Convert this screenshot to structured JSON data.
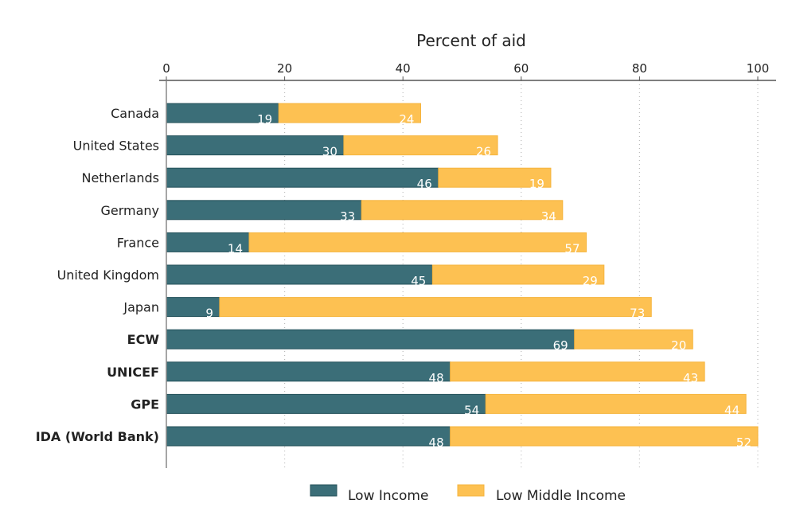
{
  "chart_data": {
    "type": "bar",
    "orientation": "horizontal",
    "stacked": true,
    "title": "",
    "xlabel": "Percent of aid",
    "ylabel": "",
    "xlim": [
      0,
      100
    ],
    "xticks": [
      0,
      20,
      40,
      60,
      80,
      100
    ],
    "grid": "vertical dotted",
    "legend_position": "bottom",
    "categories": [
      "Canada",
      "United States",
      "Netherlands",
      "Germany",
      "France",
      "United Kingdom",
      "Japan",
      "ECW",
      "UNICEF",
      "GPE",
      "IDA (World Bank)"
    ],
    "bold_categories": [
      "ECW",
      "UNICEF",
      "GPE",
      "IDA (World Bank)"
    ],
    "series": [
      {
        "name": "Low Income",
        "color": "#3b6e78",
        "values": [
          19,
          30,
          46,
          33,
          14,
          45,
          9,
          69,
          48,
          54,
          48
        ]
      },
      {
        "name": "Low Middle Income",
        "color": "#fdc152",
        "values": [
          24,
          26,
          19,
          34,
          57,
          29,
          73,
          20,
          43,
          44,
          52
        ]
      }
    ]
  }
}
